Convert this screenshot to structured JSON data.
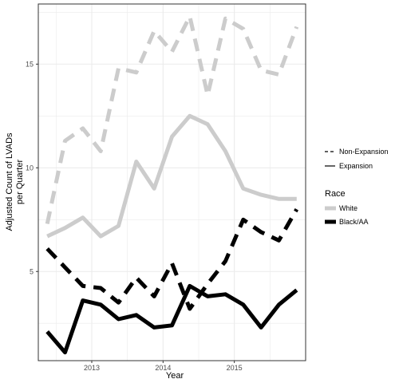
{
  "chart_data": {
    "type": "line",
    "title": "",
    "xlabel": "Year",
    "ylabel_line1": "Adjusted Count of LVADs",
    "ylabel_line2": "per Quarter",
    "x": [
      2012.375,
      2012.625,
      2012.875,
      2013.125,
      2013.375,
      2013.625,
      2013.875,
      2014.125,
      2014.375,
      2014.625,
      2014.875,
      2015.125,
      2015.375,
      2015.625,
      2015.875
    ],
    "xlim": [
      2012.25,
      2016.0
    ],
    "ylim": [
      0.7,
      17.9
    ],
    "x_ticks": [
      2013,
      2014,
      2015
    ],
    "x_tick_labels": [
      "2013",
      "2014",
      "2015"
    ],
    "y_ticks": [
      5,
      10,
      15
    ],
    "y_tick_labels": [
      "5",
      "10",
      "15"
    ],
    "grid": true,
    "legend_position": "right",
    "series": [
      {
        "race": "White",
        "expansion": "Non-Expansion",
        "values": [
          7.3,
          11.3,
          11.9,
          10.8,
          14.8,
          14.6,
          16.6,
          15.6,
          17.3,
          13.5,
          17.2,
          16.7,
          14.7,
          14.5,
          16.8
        ]
      },
      {
        "race": "White",
        "expansion": "Expansion",
        "values": [
          6.7,
          7.1,
          7.6,
          6.7,
          7.2,
          10.3,
          9.0,
          11.5,
          12.5,
          12.1,
          10.8,
          9.0,
          8.7,
          8.5,
          8.5
        ]
      },
      {
        "race": "Black/AA",
        "expansion": "Non-Expansion",
        "values": [
          6.1,
          5.2,
          4.3,
          4.2,
          3.5,
          4.7,
          3.8,
          5.4,
          3.2,
          4.4,
          5.5,
          7.5,
          6.9,
          6.5,
          8.0
        ]
      },
      {
        "race": "Black/AA",
        "expansion": "Expansion",
        "values": [
          2.1,
          1.1,
          3.6,
          3.4,
          2.7,
          2.9,
          2.3,
          2.4,
          4.3,
          3.8,
          3.9,
          3.4,
          2.3,
          3.4,
          4.1
        ]
      }
    ],
    "legend": {
      "linetype_entries": [
        {
          "label": "Non-Expansion",
          "style": "dashed"
        },
        {
          "label": "Expansion",
          "style": "solid"
        }
      ],
      "color_title": "Race",
      "color_entries": [
        {
          "label": "White",
          "color": "#cccccc"
        },
        {
          "label": "Black/AA",
          "color": "#000000"
        }
      ]
    },
    "colors": {
      "White": "#cccccc",
      "Black/AA": "#000000",
      "grid": "#ebebeb",
      "panel_border": "#333333"
    }
  }
}
